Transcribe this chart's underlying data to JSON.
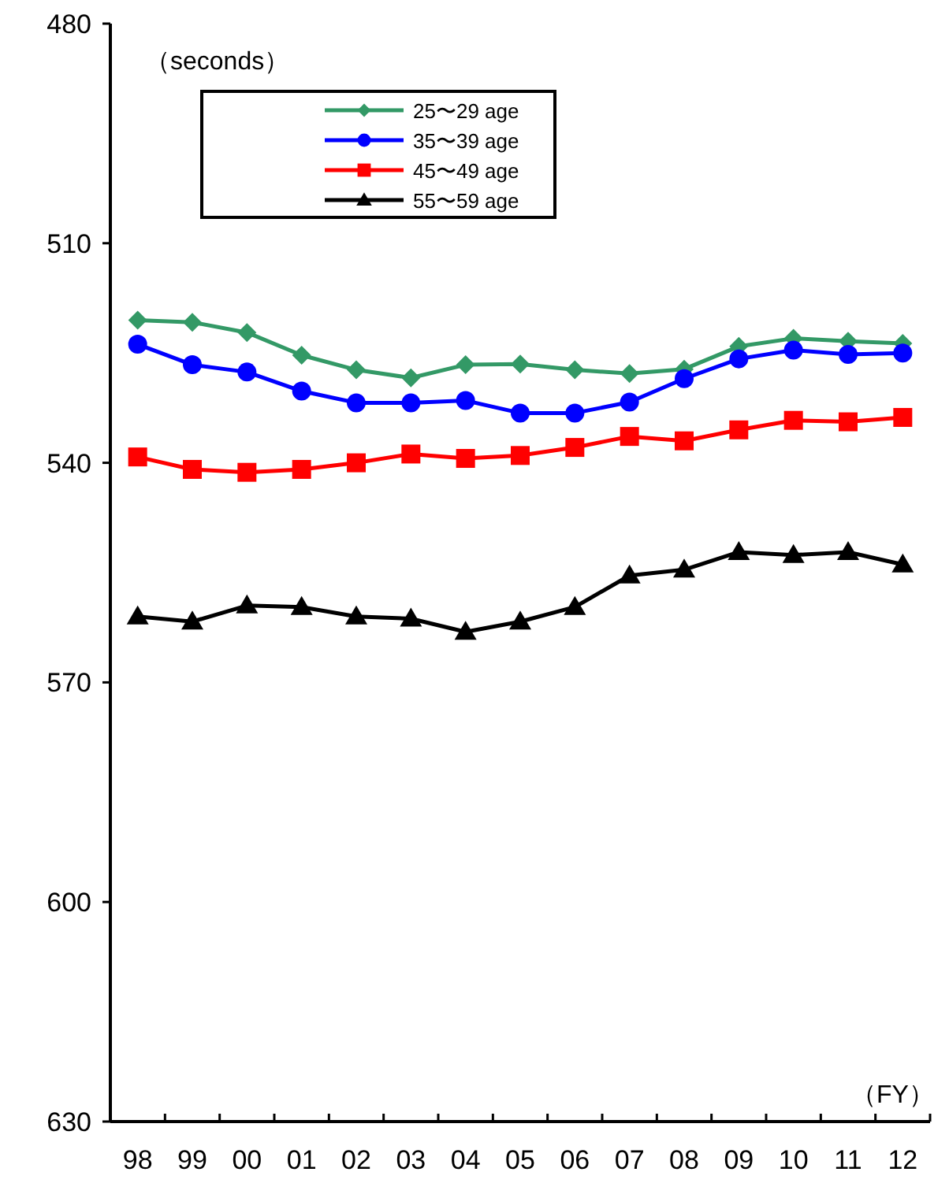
{
  "chart_data": {
    "type": "line",
    "ylabel": "（seconds）",
    "xlabel": "（FY）",
    "legend": "top left",
    "categories": [
      "98",
      "99",
      "00",
      "01",
      "02",
      "03",
      "04",
      "05",
      "06",
      "07",
      "08",
      "09",
      "10",
      "11",
      "12"
    ],
    "ylim": [
      630,
      480
    ],
    "yticks": [
      480,
      510,
      540,
      570,
      600,
      630
    ],
    "series": [
      {
        "name": "25〜29 age",
        "color": "#339966",
        "marker": "diamond",
        "values": [
          520.5,
          520.8,
          522.2,
          525.3,
          527.3,
          528.4,
          526.6,
          526.5,
          527.3,
          527.8,
          527.2,
          524.1,
          523.0,
          523.4,
          523.7
        ]
      },
      {
        "name": "35〜39 age",
        "color": "#0000ff",
        "marker": "circle",
        "values": [
          523.8,
          526.6,
          527.6,
          530.2,
          531.8,
          531.8,
          531.5,
          533.2,
          533.2,
          531.7,
          528.5,
          525.8,
          524.6,
          525.2,
          525.0
        ]
      },
      {
        "name": "45〜49 age",
        "color": "#ff0000",
        "marker": "square",
        "values": [
          539.2,
          540.9,
          541.3,
          540.9,
          540.0,
          538.8,
          539.4,
          539.0,
          537.9,
          536.4,
          537.0,
          535.5,
          534.2,
          534.4,
          533.8
        ]
      },
      {
        "name": "55〜59 age",
        "color": "#000000",
        "marker": "triangle",
        "values": [
          561.0,
          561.7,
          559.5,
          559.7,
          561.0,
          561.3,
          563.1,
          561.7,
          559.7,
          555.4,
          554.6,
          552.2,
          552.6,
          552.2,
          553.9
        ]
      }
    ]
  }
}
